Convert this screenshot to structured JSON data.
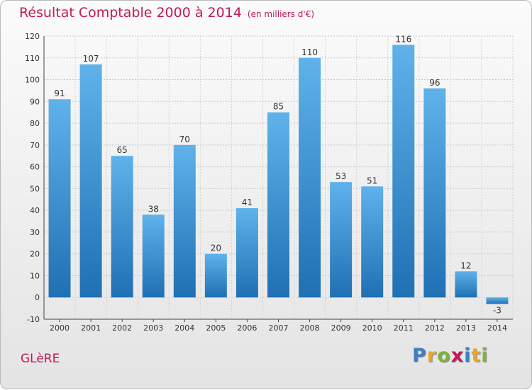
{
  "header": {
    "title": "Résultat Comptable 2000 à 2014",
    "subtitle": "(en milliers d'€)"
  },
  "footer": {
    "commune": "GLèRE",
    "logo_letters": [
      "P",
      "r",
      "o",
      "x",
      "i",
      "t",
      "i"
    ]
  },
  "colors": {
    "title": "#c2185b",
    "bar_top": "#5fb2ea",
    "bar_bottom": "#1f70b4",
    "logo": [
      "#3d7fc4",
      "#e8a52a",
      "#7bb63b",
      "#c2185b",
      "#3d7fc4",
      "#e8a52a",
      "#7bb63b"
    ]
  },
  "chart_data": {
    "type": "bar",
    "title": "Résultat Comptable 2000 à 2014",
    "subtitle": "(en milliers d'€)",
    "categories": [
      "2000",
      "2001",
      "2002",
      "2003",
      "2004",
      "2005",
      "2006",
      "2007",
      "2008",
      "2009",
      "2010",
      "2011",
      "2012",
      "2013",
      "2014"
    ],
    "values": [
      91,
      107,
      65,
      38,
      70,
      20,
      41,
      85,
      110,
      53,
      51,
      116,
      96,
      12,
      -3
    ],
    "ylim": [
      -10,
      120
    ],
    "yticks": [
      -10,
      0,
      10,
      20,
      30,
      40,
      50,
      60,
      70,
      80,
      90,
      100,
      110,
      120
    ],
    "grid": true,
    "xlabel": "",
    "ylabel": ""
  }
}
